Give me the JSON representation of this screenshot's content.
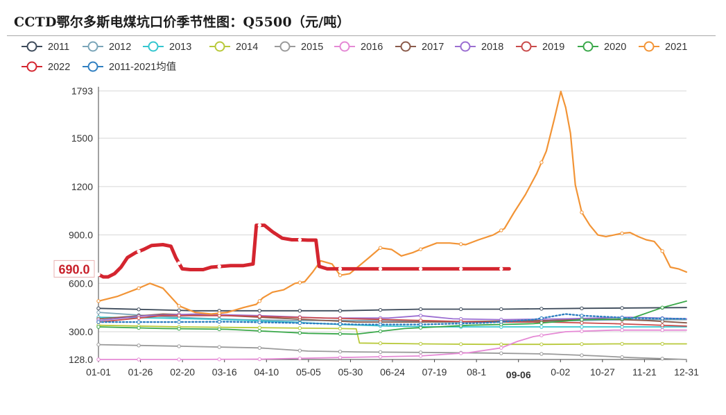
{
  "title": "CCTD鄂尔多斯电煤坑口价季节性图：Q5500（元/吨）",
  "chart_data": {
    "type": "line",
    "ylim": [
      128,
      1793
    ],
    "y_ticks": [
      128,
      300,
      600,
      900,
      1200,
      1500,
      1793
    ],
    "y_tick_labels": [
      "128.0",
      "300.0",
      "600.0",
      "900.0",
      "1200",
      "1500",
      "1793"
    ],
    "x_tick_labels": [
      "01-01",
      "01-26",
      "02-20",
      "03-16",
      "04-10",
      "05-05",
      "05-30",
      "06-24",
      "07-19",
      "08-1",
      "09-06",
      "0-02",
      "10-27",
      "11-21",
      "12-31"
    ],
    "highlight_x_label": "09-06",
    "current_value_label": "690.0",
    "current_value": 690,
    "grid": true,
    "legend_position": "top-left",
    "series": [
      {
        "name": "2011",
        "color": "#3c4a5a",
        "values": [
          [
            0,
            445
          ],
          [
            60,
            430
          ],
          [
            100,
            430
          ],
          [
            150,
            430
          ],
          [
            200,
            440
          ],
          [
            250,
            440
          ],
          [
            300,
            445
          ],
          [
            365,
            450
          ]
        ]
      },
      {
        "name": "2012",
        "color": "#7aa5b8",
        "values": [
          [
            0,
            420
          ],
          [
            30,
            400
          ],
          [
            60,
            385
          ],
          [
            90,
            375
          ],
          [
            120,
            370
          ],
          [
            150,
            370
          ],
          [
            180,
            370
          ],
          [
            210,
            360
          ],
          [
            240,
            360
          ],
          [
            270,
            365
          ],
          [
            300,
            370
          ],
          [
            330,
            375
          ],
          [
            365,
            375
          ]
        ]
      },
      {
        "name": "2013",
        "color": "#34c6cf",
        "values": [
          [
            0,
            390
          ],
          [
            40,
            385
          ],
          [
            80,
            375
          ],
          [
            120,
            360
          ],
          [
            150,
            345
          ],
          [
            180,
            335
          ],
          [
            210,
            330
          ],
          [
            240,
            330
          ],
          [
            270,
            330
          ],
          [
            300,
            330
          ],
          [
            330,
            330
          ],
          [
            365,
            330
          ]
        ]
      },
      {
        "name": "2014",
        "color": "#b8c93a",
        "values": [
          [
            0,
            340
          ],
          [
            50,
            330
          ],
          [
            100,
            325
          ],
          [
            150,
            320
          ],
          [
            160,
            318
          ],
          [
            162,
            230
          ],
          [
            200,
            225
          ],
          [
            240,
            222
          ],
          [
            280,
            222
          ],
          [
            320,
            225
          ],
          [
            365,
            225
          ]
        ]
      },
      {
        "name": "2015",
        "color": "#9a9a9a",
        "values": [
          [
            0,
            220
          ],
          [
            50,
            210
          ],
          [
            100,
            200
          ],
          [
            130,
            180
          ],
          [
            160,
            175
          ],
          [
            200,
            172
          ],
          [
            240,
            168
          ],
          [
            280,
            162
          ],
          [
            310,
            150
          ],
          [
            330,
            140
          ],
          [
            365,
            128
          ]
        ]
      },
      {
        "name": "2016",
        "color": "#e589d5",
        "values": [
          [
            0,
            128
          ],
          [
            50,
            128
          ],
          [
            100,
            130
          ],
          [
            150,
            140
          ],
          [
            200,
            150
          ],
          [
            230,
            170
          ],
          [
            250,
            200
          ],
          [
            260,
            240
          ],
          [
            270,
            270
          ],
          [
            290,
            300
          ],
          [
            320,
            310
          ],
          [
            365,
            310
          ]
        ]
      },
      {
        "name": "2017",
        "color": "#8a5a4a",
        "values": [
          [
            0,
            380
          ],
          [
            40,
            410
          ],
          [
            80,
            400
          ],
          [
            120,
            380
          ],
          [
            160,
            360
          ],
          [
            200,
            360
          ],
          [
            240,
            365
          ],
          [
            280,
            370
          ],
          [
            310,
            380
          ],
          [
            340,
            370
          ],
          [
            365,
            355
          ]
        ]
      },
      {
        "name": "2018",
        "color": "#9b6ed1",
        "values": [
          [
            0,
            370
          ],
          [
            30,
            400
          ],
          [
            60,
            410
          ],
          [
            100,
            400
          ],
          [
            140,
            385
          ],
          [
            180,
            385
          ],
          [
            200,
            400
          ],
          [
            220,
            380
          ],
          [
            250,
            375
          ],
          [
            290,
            380
          ],
          [
            330,
            390
          ],
          [
            365,
            380
          ]
        ]
      },
      {
        "name": "2019",
        "color": "#c94a4a",
        "values": [
          [
            0,
            360
          ],
          [
            40,
            400
          ],
          [
            80,
            400
          ],
          [
            120,
            390
          ],
          [
            160,
            380
          ],
          [
            200,
            370
          ],
          [
            240,
            360
          ],
          [
            280,
            360
          ],
          [
            320,
            350
          ],
          [
            365,
            335
          ]
        ]
      },
      {
        "name": "2020",
        "color": "#3aa84a",
        "values": [
          [
            0,
            330
          ],
          [
            40,
            320
          ],
          [
            80,
            315
          ],
          [
            110,
            300
          ],
          [
            130,
            290
          ],
          [
            160,
            285
          ],
          [
            190,
            320
          ],
          [
            230,
            340
          ],
          [
            270,
            350
          ],
          [
            300,
            375
          ],
          [
            330,
            380
          ],
          [
            350,
            450
          ],
          [
            365,
            490
          ]
        ]
      },
      {
        "name": "2021",
        "color": "#f29436",
        "values": [
          [
            0,
            490
          ],
          [
            12,
            520
          ],
          [
            25,
            570
          ],
          [
            32,
            600
          ],
          [
            40,
            570
          ],
          [
            50,
            460
          ],
          [
            60,
            420
          ],
          [
            70,
            410
          ],
          [
            80,
            420
          ],
          [
            90,
            450
          ],
          [
            98,
            470
          ],
          [
            102,
            510
          ],
          [
            108,
            545
          ],
          [
            115,
            560
          ],
          [
            122,
            600
          ],
          [
            128,
            610
          ],
          [
            133,
            670
          ],
          [
            138,
            740
          ],
          [
            145,
            720
          ],
          [
            150,
            650
          ],
          [
            156,
            660
          ],
          [
            162,
            710
          ],
          [
            168,
            760
          ],
          [
            175,
            820
          ],
          [
            182,
            810
          ],
          [
            188,
            770
          ],
          [
            195,
            790
          ],
          [
            202,
            820
          ],
          [
            210,
            850
          ],
          [
            218,
            850
          ],
          [
            228,
            840
          ],
          [
            236,
            870
          ],
          [
            245,
            900
          ],
          [
            252,
            940
          ],
          [
            258,
            1040
          ],
          [
            265,
            1150
          ],
          [
            272,
            1280
          ],
          [
            278,
            1420
          ],
          [
            283,
            1620
          ],
          [
            287,
            1790
          ],
          [
            290,
            1690
          ],
          [
            293,
            1530
          ],
          [
            296,
            1210
          ],
          [
            300,
            1040
          ],
          [
            305,
            960
          ],
          [
            310,
            900
          ],
          [
            315,
            890
          ],
          [
            320,
            900
          ],
          [
            325,
            910
          ],
          [
            330,
            915
          ],
          [
            335,
            890
          ],
          [
            340,
            870
          ],
          [
            345,
            860
          ],
          [
            350,
            800
          ],
          [
            355,
            700
          ],
          [
            360,
            690
          ],
          [
            365,
            670
          ]
        ]
      },
      {
        "name": "2022",
        "color": "#d4252f",
        "values": [
          [
            0,
            655
          ],
          [
            3,
            640
          ],
          [
            6,
            640
          ],
          [
            10,
            660
          ],
          [
            14,
            700
          ],
          [
            18,
            760
          ],
          [
            23,
            790
          ],
          [
            28,
            810
          ],
          [
            33,
            835
          ],
          [
            40,
            840
          ],
          [
            45,
            830
          ],
          [
            48,
            760
          ],
          [
            52,
            690
          ],
          [
            57,
            685
          ],
          [
            65,
            685
          ],
          [
            70,
            700
          ],
          [
            82,
            710
          ],
          [
            90,
            710
          ],
          [
            96,
            720
          ],
          [
            98,
            960
          ],
          [
            103,
            960
          ],
          [
            108,
            920
          ],
          [
            114,
            880
          ],
          [
            120,
            870
          ],
          [
            125,
            870
          ],
          [
            130,
            868
          ],
          [
            135,
            868
          ],
          [
            137,
            705
          ],
          [
            142,
            690
          ],
          [
            150,
            690
          ],
          [
            200,
            690
          ],
          [
            250,
            690
          ],
          [
            255,
            690
          ]
        ]
      },
      {
        "name": "2011-2021均值",
        "color": "#2f7fc1",
        "dotted": true,
        "values": [
          [
            0,
            360
          ],
          [
            40,
            360
          ],
          [
            80,
            362
          ],
          [
            120,
            355
          ],
          [
            160,
            345
          ],
          [
            200,
            345
          ],
          [
            240,
            355
          ],
          [
            270,
            375
          ],
          [
            290,
            410
          ],
          [
            300,
            400
          ],
          [
            310,
            395
          ],
          [
            330,
            385
          ],
          [
            365,
            380
          ]
        ]
      }
    ]
  }
}
